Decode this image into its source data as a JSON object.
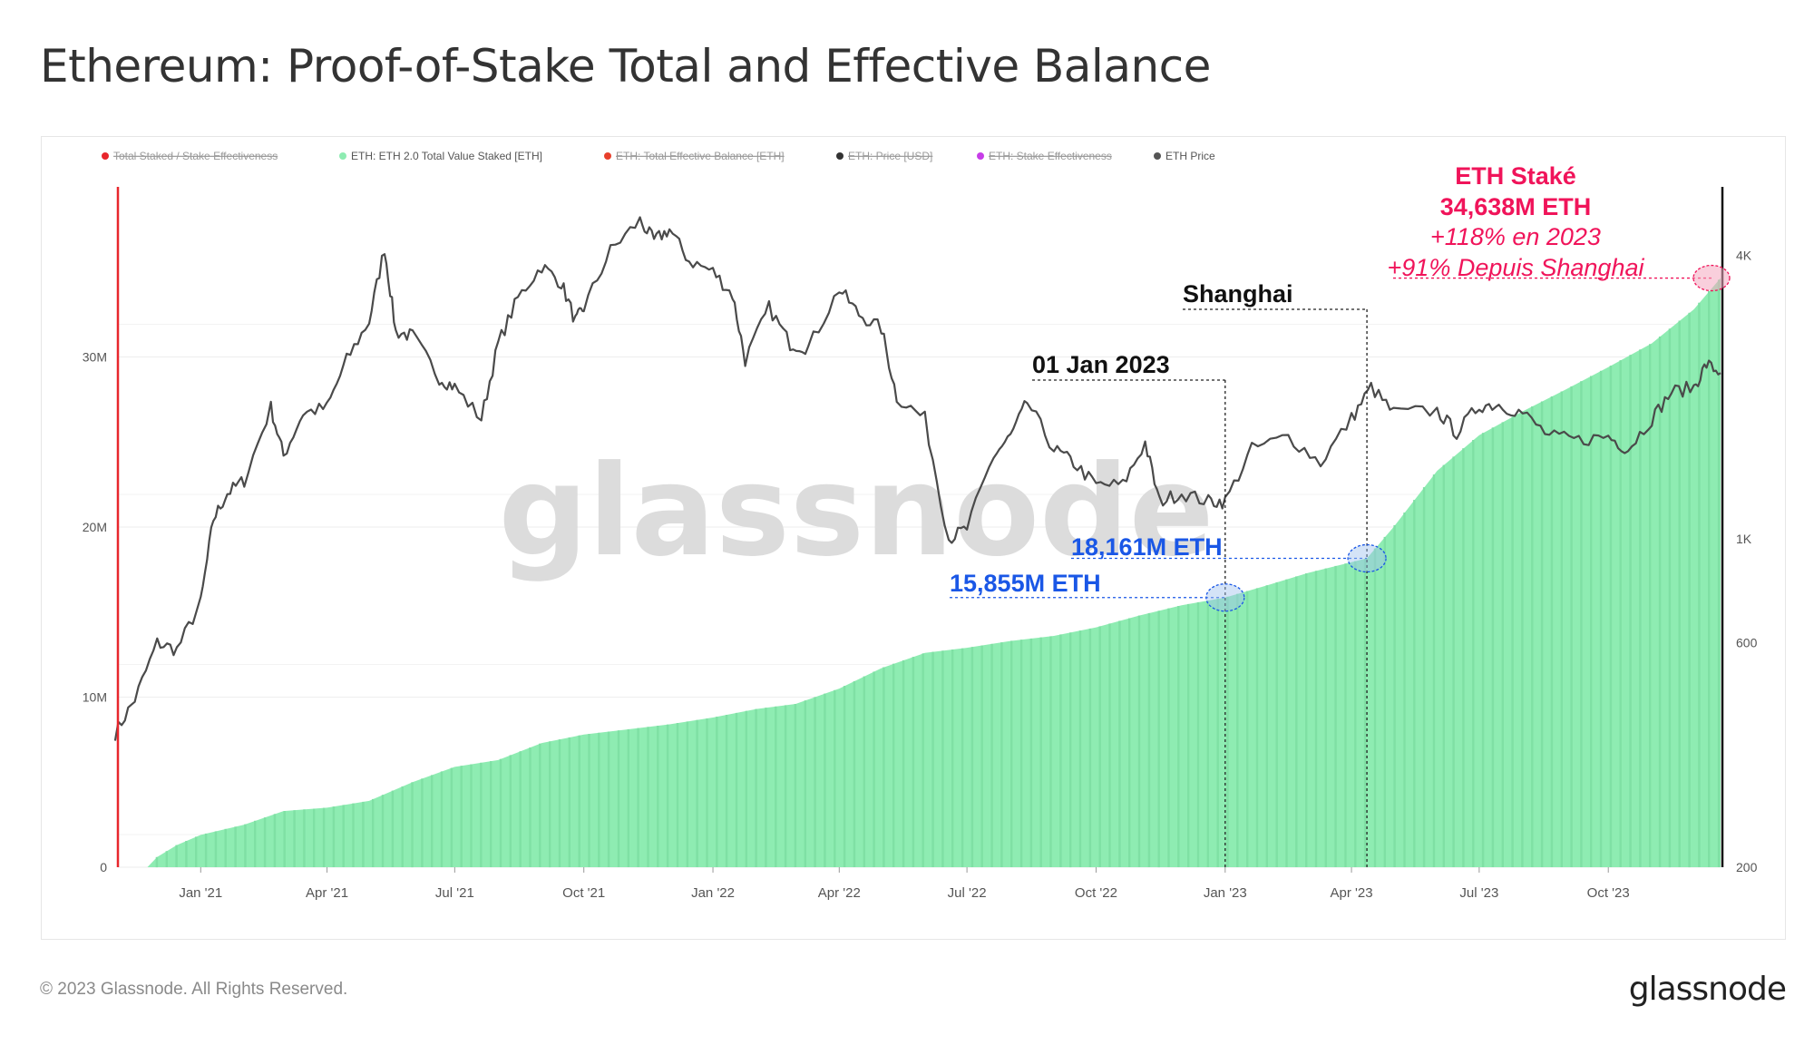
{
  "title": "Ethereum: Proof-of-Stake Total and Effective Balance",
  "footer": {
    "copyright": "© 2023 Glassnode. All Rights Reserved.",
    "logo": "glassnode"
  },
  "watermark": "glassnode",
  "colors": {
    "staked_fill": "#8eecb2",
    "staked_bar": "#7fe0a4",
    "price_line": "#4a4a4a",
    "annotation_pink": "#f0145a",
    "annotation_blue": "#1a57e6",
    "left_axis": "#e8262c",
    "watermark": "#dcdcdc"
  },
  "chart_data": {
    "type": "area",
    "legend_position": "top-left",
    "legend": [
      {
        "label": "Total Staked / Stake Effectiveness",
        "color": "#e8262c",
        "hidden": true
      },
      {
        "label": "ETH: ETH 2.0 Total Value Staked [ETH]",
        "color": "#8eecb2",
        "hidden": false
      },
      {
        "label": "ETH: Total Effective Balance [ETH]",
        "color": "#e8402c",
        "hidden": true
      },
      {
        "label": "ETH: Price [USD]",
        "color": "#333333",
        "hidden": true
      },
      {
        "label": "ETH: Stake Effectiveness",
        "color": "#c73de8",
        "hidden": true
      },
      {
        "label": "ETH Price",
        "color": "#555555",
        "hidden": false
      }
    ],
    "x_range": [
      "2020-11-03",
      "2023-12-20"
    ],
    "x_ticks": [
      {
        "date": "2021-01-01",
        "label": "Jan '21"
      },
      {
        "date": "2021-04-01",
        "label": "Apr '21"
      },
      {
        "date": "2021-07-01",
        "label": "Jul '21"
      },
      {
        "date": "2021-10-01",
        "label": "Oct '21"
      },
      {
        "date": "2022-01-01",
        "label": "Jan '22"
      },
      {
        "date": "2022-04-01",
        "label": "Apr '22"
      },
      {
        "date": "2022-07-01",
        "label": "Jul '22"
      },
      {
        "date": "2022-10-01",
        "label": "Oct '22"
      },
      {
        "date": "2023-01-01",
        "label": "Jan '23"
      },
      {
        "date": "2023-04-01",
        "label": "Apr '23"
      },
      {
        "date": "2023-07-01",
        "label": "Jul '23"
      },
      {
        "date": "2023-10-01",
        "label": "Oct '23"
      }
    ],
    "y_left": {
      "min": 0,
      "max": 40000000,
      "ticks": [
        {
          "value": 0,
          "label": "0"
        },
        {
          "value": 10000000,
          "label": "10M"
        },
        {
          "value": 20000000,
          "label": "20M"
        },
        {
          "value": 30000000,
          "label": "30M"
        }
      ]
    },
    "y_right": {
      "scale": "log",
      "min": 200,
      "max": 5600,
      "ticks": [
        {
          "value": 200,
          "label": "200"
        },
        {
          "value": 600,
          "label": "600"
        },
        {
          "value": 1000,
          "label": "1K"
        },
        {
          "value": 4000,
          "label": "4K"
        }
      ]
    },
    "series": [
      {
        "name": "ETH: ETH 2.0 Total Value Staked [ETH]",
        "axis": "left",
        "points": [
          [
            "2020-11-03",
            0
          ],
          [
            "2020-11-24",
            0
          ],
          [
            "2020-12-01",
            600000
          ],
          [
            "2020-12-15",
            1300000
          ],
          [
            "2021-01-01",
            1900000
          ],
          [
            "2021-02-01",
            2500000
          ],
          [
            "2021-03-01",
            3300000
          ],
          [
            "2021-04-01",
            3500000
          ],
          [
            "2021-05-01",
            3900000
          ],
          [
            "2021-06-01",
            5000000
          ],
          [
            "2021-07-01",
            5900000
          ],
          [
            "2021-08-01",
            6300000
          ],
          [
            "2021-09-01",
            7300000
          ],
          [
            "2021-10-01",
            7800000
          ],
          [
            "2021-11-01",
            8100000
          ],
          [
            "2021-12-01",
            8400000
          ],
          [
            "2022-01-01",
            8800000
          ],
          [
            "2022-02-01",
            9300000
          ],
          [
            "2022-03-01",
            9600000
          ],
          [
            "2022-04-01",
            10500000
          ],
          [
            "2022-05-01",
            11700000
          ],
          [
            "2022-06-01",
            12600000
          ],
          [
            "2022-07-01",
            12900000
          ],
          [
            "2022-08-01",
            13300000
          ],
          [
            "2022-09-01",
            13600000
          ],
          [
            "2022-10-01",
            14100000
          ],
          [
            "2022-11-01",
            14800000
          ],
          [
            "2022-12-01",
            15400000
          ],
          [
            "2023-01-01",
            15855000
          ],
          [
            "2023-02-01",
            16600000
          ],
          [
            "2023-03-01",
            17300000
          ],
          [
            "2023-04-12",
            18161000
          ],
          [
            "2023-05-01",
            20000000
          ],
          [
            "2023-06-01",
            23300000
          ],
          [
            "2023-07-01",
            25400000
          ],
          [
            "2023-08-01",
            26800000
          ],
          [
            "2023-09-01",
            28100000
          ],
          [
            "2023-10-01",
            29400000
          ],
          [
            "2023-11-01",
            30800000
          ],
          [
            "2023-12-01",
            32800000
          ],
          [
            "2023-12-20",
            34638000
          ]
        ]
      },
      {
        "name": "ETH Price",
        "axis": "right",
        "points": [
          [
            "2020-11-01",
            385
          ],
          [
            "2020-11-15",
            455
          ],
          [
            "2020-12-01",
            600
          ],
          [
            "2020-12-15",
            580
          ],
          [
            "2021-01-01",
            730
          ],
          [
            "2021-01-10",
            1100
          ],
          [
            "2021-01-20",
            1250
          ],
          [
            "2021-02-01",
            1330
          ],
          [
            "2021-02-20",
            1900
          ],
          [
            "2021-03-01",
            1500
          ],
          [
            "2021-03-15",
            1850
          ],
          [
            "2021-04-01",
            1900
          ],
          [
            "2021-04-15",
            2400
          ],
          [
            "2021-05-01",
            2900
          ],
          [
            "2021-05-12",
            4150
          ],
          [
            "2021-05-20",
            2750
          ],
          [
            "2021-06-01",
            2700
          ],
          [
            "2021-06-20",
            2200
          ],
          [
            "2021-07-01",
            2100
          ],
          [
            "2021-07-20",
            1800
          ],
          [
            "2021-08-01",
            2600
          ],
          [
            "2021-08-15",
            3250
          ],
          [
            "2021-09-01",
            3800
          ],
          [
            "2021-09-15",
            3500
          ],
          [
            "2021-09-25",
            2900
          ],
          [
            "2021-10-01",
            3100
          ],
          [
            "2021-10-20",
            4100
          ],
          [
            "2021-11-10",
            4750
          ],
          [
            "2021-11-20",
            4300
          ],
          [
            "2021-12-01",
            4550
          ],
          [
            "2021-12-15",
            3900
          ],
          [
            "2022-01-01",
            3700
          ],
          [
            "2022-01-15",
            3300
          ],
          [
            "2022-01-24",
            2400
          ],
          [
            "2022-02-10",
            3100
          ],
          [
            "2022-02-25",
            2600
          ],
          [
            "2022-03-10",
            2550
          ],
          [
            "2022-04-01",
            3400
          ],
          [
            "2022-04-15",
            3000
          ],
          [
            "2022-05-01",
            2800
          ],
          [
            "2022-05-12",
            2000
          ],
          [
            "2022-06-01",
            1800
          ],
          [
            "2022-06-18",
            1000
          ],
          [
            "2022-07-01",
            1050
          ],
          [
            "2022-07-20",
            1500
          ],
          [
            "2022-08-01",
            1650
          ],
          [
            "2022-08-13",
            1950
          ],
          [
            "2022-09-01",
            1550
          ],
          [
            "2022-09-15",
            1450
          ],
          [
            "2022-10-01",
            1300
          ],
          [
            "2022-10-20",
            1300
          ],
          [
            "2022-11-05",
            1600
          ],
          [
            "2022-11-15",
            1200
          ],
          [
            "2022-12-01",
            1250
          ],
          [
            "2022-12-20",
            1200
          ],
          [
            "2023-01-01",
            1200
          ],
          [
            "2023-01-20",
            1550
          ],
          [
            "2023-02-15",
            1650
          ],
          [
            "2023-03-10",
            1450
          ],
          [
            "2023-04-01",
            1800
          ],
          [
            "2023-04-15",
            2100
          ],
          [
            "2023-05-01",
            1850
          ],
          [
            "2023-06-01",
            1870
          ],
          [
            "2023-06-15",
            1680
          ],
          [
            "2023-07-01",
            1920
          ],
          [
            "2023-07-15",
            1930
          ],
          [
            "2023-08-01",
            1850
          ],
          [
            "2023-08-20",
            1650
          ],
          [
            "2023-09-10",
            1620
          ],
          [
            "2023-10-01",
            1650
          ],
          [
            "2023-10-15",
            1550
          ],
          [
            "2023-11-01",
            1800
          ],
          [
            "2023-11-15",
            2050
          ],
          [
            "2023-12-01",
            2100
          ],
          [
            "2023-12-10",
            2350
          ],
          [
            "2023-12-20",
            2250
          ]
        ]
      }
    ],
    "annotations": [
      {
        "id": "jan2023",
        "label": "01 Jan 2023",
        "date": "2023-01-01"
      },
      {
        "id": "shanghai",
        "label": "Shanghai",
        "date": "2023-04-12"
      },
      {
        "id": "value_jan",
        "label": "15,855M ETH",
        "date": "2023-01-01",
        "value": 15855000
      },
      {
        "id": "value_shanghai",
        "label": "18,161M ETH",
        "date": "2023-04-12",
        "value": 18161000
      },
      {
        "id": "latest",
        "lines": [
          "ETH Staké",
          "34,638M ETH",
          "+118% en 2023",
          "+91% Depuis Shanghai"
        ],
        "date": "2023-12-20",
        "value": 34638000
      }
    ]
  }
}
